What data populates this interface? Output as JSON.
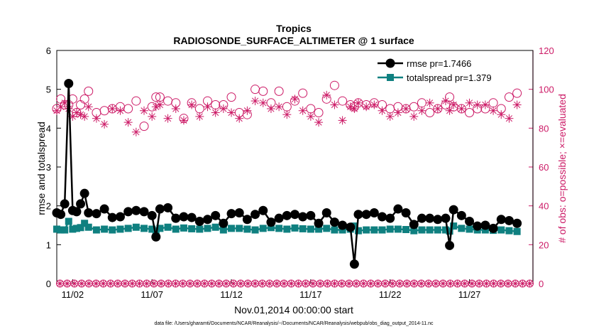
{
  "chart_data": {
    "type": "line",
    "title": "Tropics",
    "subtitle": "RADIOSONDE_SURFACE_ALTIMETER @ 1 surface",
    "xlabel": "Nov.01,2014 00:00:00 start",
    "ylabel_left": "rmse and totalspread",
    "ylabel_right": "# of obs: o=possible; ×=evaluated",
    "x_ticks": [
      {
        "day": 2,
        "label": "11/02"
      },
      {
        "day": 7,
        "label": "11/07"
      },
      {
        "day": 12,
        "label": "11/12"
      },
      {
        "day": 17,
        "label": "11/17"
      },
      {
        "day": 22,
        "label": "11/22"
      },
      {
        "day": 27,
        "label": "11/27"
      }
    ],
    "xlim": [
      1,
      31
    ],
    "ylim_left": [
      0,
      6
    ],
    "yticks_left": [
      "0",
      "1",
      "2",
      "3",
      "4",
      "5",
      "6"
    ],
    "ylim_right": [
      0,
      120
    ],
    "yticks_right": [
      "0",
      "20",
      "40",
      "60",
      "80",
      "100",
      "120"
    ],
    "legend": [
      {
        "label": "rmse pr=1.7466"
      },
      {
        "label": "totalspread pr=1.379"
      }
    ],
    "colors": {
      "rmse": "#000000",
      "spread": "#0f8080",
      "obs": "#cc1a66"
    },
    "x": [
      1.0,
      1.25,
      1.5,
      1.75,
      2.0,
      2.25,
      2.5,
      2.75,
      3.0,
      3.5,
      4.0,
      4.5,
      5.0,
      5.5,
      6.0,
      6.5,
      7.0,
      7.25,
      7.5,
      8.0,
      8.5,
      9.0,
      9.5,
      10.0,
      10.5,
      11.0,
      11.5,
      12.0,
      12.5,
      13.0,
      13.5,
      14.0,
      14.5,
      15.0,
      15.5,
      16.0,
      16.5,
      17.0,
      17.5,
      18.0,
      18.5,
      19.0,
      19.5,
      19.75,
      20.0,
      20.5,
      21.0,
      21.5,
      22.0,
      22.5,
      23.0,
      23.5,
      24.0,
      24.5,
      25.0,
      25.5,
      25.75,
      26.0,
      26.5,
      27.0,
      27.5,
      28.0,
      28.5,
      29.0,
      29.5,
      30.0
    ],
    "series": [
      {
        "name": "rmse",
        "values": [
          1.82,
          1.78,
          2.05,
          5.15,
          1.88,
          1.85,
          2.05,
          2.32,
          1.82,
          1.8,
          1.92,
          1.7,
          1.72,
          1.85,
          1.88,
          1.85,
          1.75,
          1.2,
          1.92,
          1.95,
          1.68,
          1.72,
          1.7,
          1.6,
          1.65,
          1.75,
          1.55,
          1.8,
          1.82,
          1.65,
          1.78,
          1.88,
          1.58,
          1.68,
          1.75,
          1.78,
          1.72,
          1.75,
          1.55,
          1.82,
          1.58,
          1.5,
          1.45,
          0.5,
          1.78,
          1.78,
          1.82,
          1.72,
          1.68,
          1.92,
          1.82,
          1.52,
          1.68,
          1.68,
          1.65,
          1.68,
          0.98,
          1.9,
          1.75,
          1.6,
          1.48,
          1.5,
          1.42,
          1.65,
          1.62,
          1.55
        ]
      },
      {
        "name": "totalspread",
        "values": [
          1.4,
          1.38,
          1.38,
          1.6,
          1.4,
          1.42,
          1.44,
          1.55,
          1.45,
          1.38,
          1.4,
          1.38,
          1.4,
          1.42,
          1.45,
          1.42,
          1.4,
          1.36,
          1.42,
          1.45,
          1.4,
          1.43,
          1.41,
          1.4,
          1.42,
          1.45,
          1.38,
          1.42,
          1.42,
          1.4,
          1.38,
          1.42,
          1.44,
          1.42,
          1.4,
          1.43,
          1.41,
          1.4,
          1.4,
          1.42,
          1.38,
          1.38,
          1.4,
          1.48,
          1.36,
          1.38,
          1.38,
          1.38,
          1.4,
          1.4,
          1.39,
          1.36,
          1.38,
          1.38,
          1.38,
          1.38,
          1.35,
          1.48,
          1.42,
          1.4,
          1.38,
          1.38,
          1.37,
          1.38,
          1.36,
          1.34
        ]
      },
      {
        "name": "possible",
        "values": [
          90,
          95,
          92,
          92,
          95,
          88,
          92,
          95,
          99,
          88,
          89,
          90,
          91,
          90,
          94,
          81,
          91,
          96,
          96,
          94,
          93,
          85,
          93,
          90,
          94,
          92,
          92,
          96,
          88,
          87,
          100,
          99,
          93,
          99,
          91,
          94,
          98,
          90,
          88,
          95,
          102,
          94,
          92,
          91,
          93,
          92,
          93,
          92,
          90,
          91,
          90,
          91,
          93,
          88,
          90,
          92,
          96,
          91,
          90,
          88,
          90,
          90,
          93,
          90,
          96,
          98
        ]
      },
      {
        "name": "evaluated",
        "values": [
          89,
          91,
          93,
          90,
          86,
          88,
          87,
          86,
          91,
          85,
          82,
          90,
          89,
          83,
          78,
          89,
          86,
          91,
          92,
          85,
          90,
          84,
          92,
          86,
          91,
          88,
          90,
          88,
          85,
          89,
          94,
          93,
          90,
          91,
          87,
          95,
          89,
          86,
          83,
          97,
          92,
          84,
          91,
          90,
          93,
          91,
          92,
          89,
          86,
          88,
          90,
          86,
          89,
          93,
          90,
          94,
          89,
          92,
          90,
          93,
          92,
          92,
          89,
          87,
          85,
          92
        ]
      }
    ],
    "possible_zero_count": 66,
    "evaluated_zero_count": 66,
    "footnote": "data file: /Users/gharamti/Documents/NCAR/Reanalysis/~/Documents/NCAR/Reanalysis/webpub/obs_diag_output_2014-11.nc"
  }
}
